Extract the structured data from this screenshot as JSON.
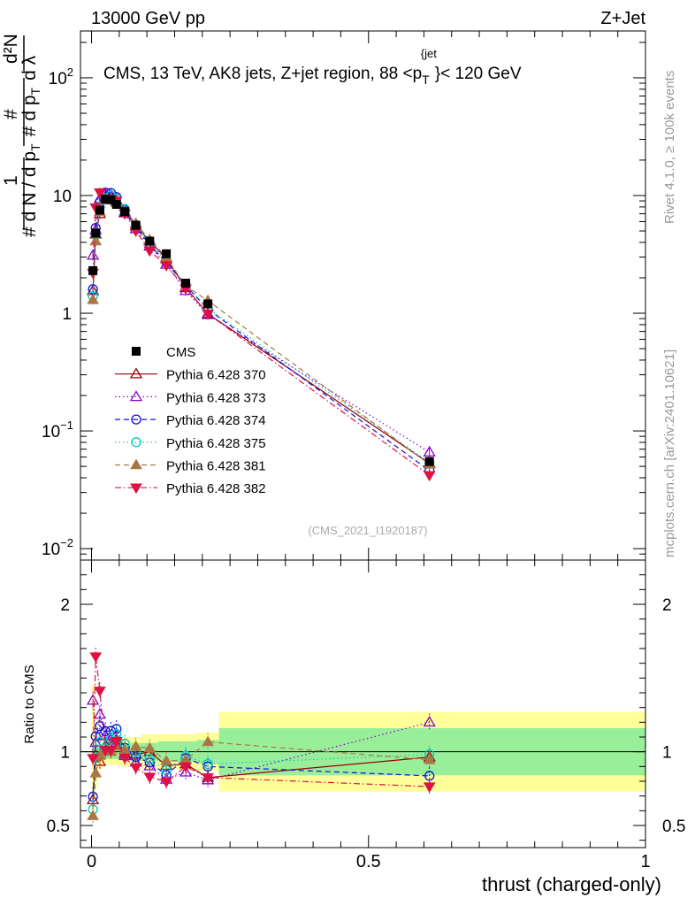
{
  "header": {
    "left": "13000 GeV pp",
    "right": "Z+Jet"
  },
  "side_texts": {
    "rivet": "Rivet 4.1.0, ≥ 100k events",
    "mcplots": "mcplots.cern.ch [arXiv:2401.10621]"
  },
  "colors": {
    "CMS": "#000000",
    "p370": "#990000",
    "p373": "#8800cc",
    "p374": "#1111dd",
    "p375": "#00ccbb",
    "p381": "#aa7744",
    "p382": "#dd1144",
    "band_inner": "#99ee99",
    "band_outer": "#ffff99"
  },
  "chart_data": {
    "type": "line",
    "title": "CMS, 13 TeV, AK8 jets, Z+jet region, 88 <p_T^{jet}< 120 GeV",
    "title_parts": {
      "main": "CMS, 13 TeV, AK8 jets, Z+jet region, 88 <p",
      "sub": "T",
      "sup": "{jet",
      "tail": "}< 120 GeV"
    },
    "analysis_id": "(CMS_2021_I1920187)",
    "xlabel": "thrust (charged-only)",
    "ylabel_top": "1/N dN/dp_T d²N/dp_T dλ",
    "ylabel_ratio": "Ratio to CMS",
    "xlim": [
      -0.02,
      1.0
    ],
    "ylim_top": [
      0.008,
      250
    ],
    "yscale_top": "log",
    "ylim_ratio": [
      0.35,
      2.3
    ],
    "xticks": [
      0,
      0.5,
      1
    ],
    "xtick_labels": [
      "0",
      "0.5",
      "1"
    ],
    "yticks_top_labels": {
      "1e2": "10^2",
      "10": "10",
      "1": "1",
      "1e-1": "10^-1",
      "1e-2": "10^-2"
    },
    "yticks_ratio_labels": [
      "2",
      "1",
      "0.5"
    ],
    "legend_position": "middle-left",
    "x": [
      0.0025,
      0.0075,
      0.015,
      0.025,
      0.035,
      0.045,
      0.06,
      0.08,
      0.105,
      0.135,
      0.17,
      0.21,
      0.61
    ],
    "data": {
      "name": "CMS",
      "values": [
        2.3,
        4.8,
        7.5,
        9.3,
        9.2,
        8.4,
        7.3,
        5.6,
        4.1,
        3.2,
        1.8,
        1.2,
        0.055
      ]
    },
    "series": [
      {
        "key": "p370",
        "name": "Pythia 6.428 370",
        "marker": "triangle-up-open",
        "dash": "solid",
        "values": [
          1.55,
          4.7,
          7.0,
          9.7,
          9.7,
          9.1,
          7.2,
          5.5,
          4.1,
          2.9,
          1.65,
          0.99,
          0.053
        ]
      },
      {
        "key": "p373",
        "name": "Pythia 6.428 373",
        "marker": "triangle-up-open",
        "dash": "dotted",
        "values": [
          3.1,
          5.1,
          9.4,
          10.3,
          10.0,
          8.9,
          7.1,
          5.2,
          3.7,
          2.6,
          1.55,
          0.97,
          0.066
        ]
      },
      {
        "key": "p374",
        "name": "Pythia 6.428 374",
        "marker": "circle-open",
        "dash": "dashed",
        "values": [
          1.6,
          5.3,
          8.8,
          10.6,
          10.5,
          9.7,
          7.5,
          5.4,
          3.8,
          2.7,
          1.72,
          1.08,
          0.046
        ]
      },
      {
        "key": "p375",
        "name": "Pythia 6.428 375",
        "marker": "circle-open",
        "dash": "dotted",
        "values": [
          1.4,
          4.6,
          8.0,
          9.5,
          10.0,
          9.4,
          7.7,
          5.6,
          3.9,
          2.8,
          1.75,
          1.1,
          0.054
        ]
      },
      {
        "key": "p381",
        "name": "Pythia 6.428 381",
        "marker": "triangle-up-filled",
        "dash": "dashed",
        "values": [
          1.3,
          4.1,
          7.3,
          9.3,
          9.2,
          8.7,
          7.4,
          5.8,
          4.2,
          3.0,
          1.7,
          1.28,
          0.052
        ]
      },
      {
        "key": "p382",
        "name": "Pythia 6.428 382",
        "marker": "triangle-down-filled",
        "dash": "dashdot",
        "values": [
          2.2,
          7.9,
          10.6,
          9.4,
          9.3,
          9.0,
          7.0,
          5.0,
          3.4,
          2.55,
          1.62,
          0.99,
          0.042
        ]
      }
    ]
  }
}
